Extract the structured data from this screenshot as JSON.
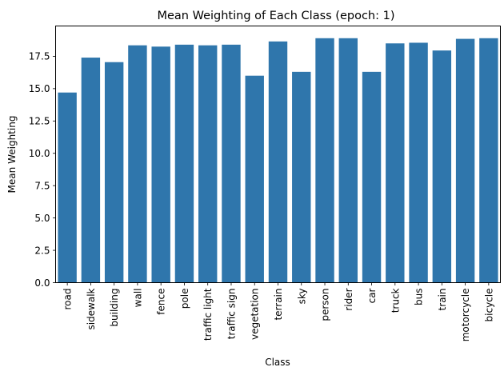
{
  "chart_data": {
    "type": "bar",
    "title": "Mean Weighting of Each Class (epoch: 1)",
    "xlabel": "Class",
    "ylabel": "Mean Weighting",
    "categories": [
      "road",
      "sidewalk",
      "building",
      "wall",
      "fence",
      "pole",
      "traffic light",
      "traffic sign",
      "vegetation",
      "terrain",
      "sky",
      "person",
      "rider",
      "car",
      "truck",
      "bus",
      "train",
      "motorcycle",
      "bicycle"
    ],
    "values": [
      14.7,
      17.4,
      17.05,
      18.35,
      18.25,
      18.4,
      18.35,
      18.4,
      16.0,
      18.65,
      16.3,
      18.9,
      18.9,
      16.3,
      18.5,
      18.55,
      17.95,
      18.85,
      18.9
    ],
    "ylim": [
      0,
      19.845
    ],
    "yticks": [
      0.0,
      2.5,
      5.0,
      7.5,
      10.0,
      12.5,
      15.0,
      17.5
    ],
    "ytick_labels": [
      "0.0",
      "2.5",
      "5.0",
      "7.5",
      "10.0",
      "12.5",
      "15.0",
      "17.5"
    ],
    "bar_color": "#2f76ac",
    "grid": false,
    "legend": "none"
  }
}
